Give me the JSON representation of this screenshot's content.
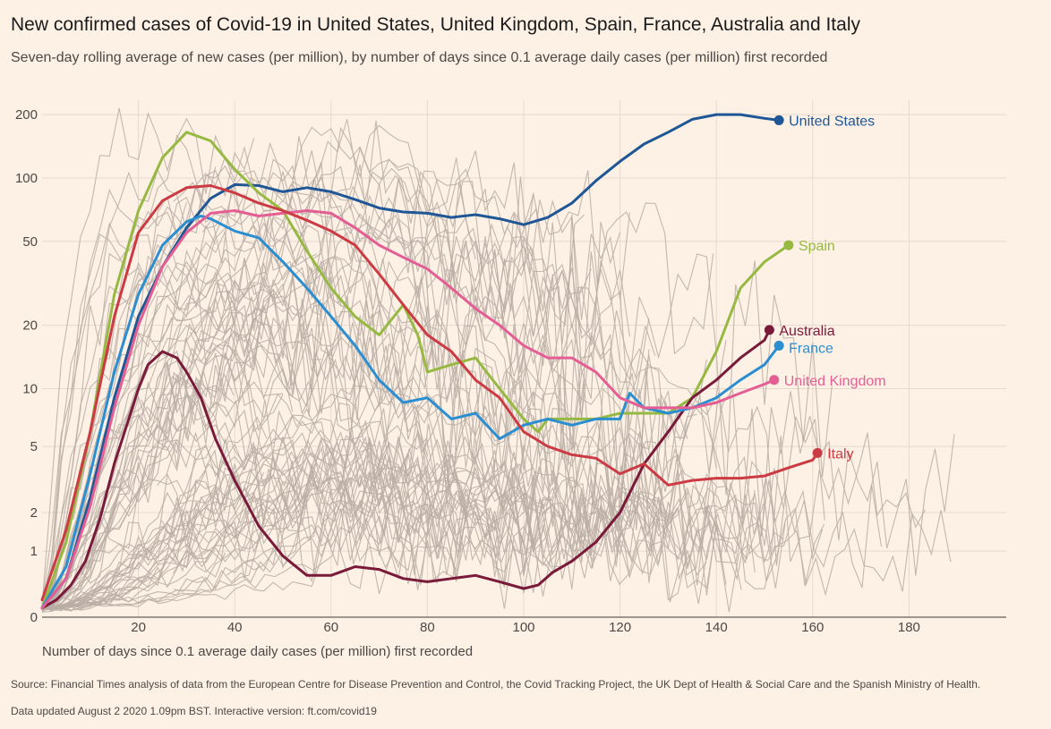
{
  "title": "New confirmed cases of Covid-19 in United States, United Kingdom, Spain, France, Australia and Italy",
  "subtitle": "Seven-day rolling average of new cases (per million), by number of days since 0.1 average daily cases (per million) first recorded",
  "footer": {
    "source": "Source: Financial Times analysis of data from the European Centre for Disease Prevention and Control, the Covid Tracking Project, the UK Dept of Health & Social Care and the Spanish Ministry of Health.",
    "updated": "Data updated August 2 2020 1.09pm BST. Interactive version: ft.com/covid19"
  },
  "colors": {
    "background": "#FDF1E5",
    "grid": "#E6D9CE",
    "axis": "#66605C",
    "other_countries": "#B8ADA4"
  },
  "chart_data": {
    "type": "line",
    "title": "New confirmed cases of Covid-19 in United States, United Kingdom, Spain, France, Australia and Italy",
    "xlabel": "Number of days since 0.1 average daily cases (per million) first recorded",
    "ylabel": "",
    "xlim": [
      0,
      200
    ],
    "ylim": [
      0,
      200
    ],
    "y_scale": "symlog",
    "x_ticks": [
      20,
      40,
      60,
      80,
      100,
      120,
      140,
      160,
      180
    ],
    "y_ticks": [
      0,
      1,
      2,
      5,
      10,
      20,
      50,
      100,
      200
    ],
    "y_tick_labels": [
      "0",
      "1",
      "2",
      "5",
      "10",
      "20",
      "50",
      "100",
      "200"
    ],
    "grid": true,
    "legend": "direct labels at line ends",
    "background_lines": "many other countries shown as thin grey lines",
    "series": [
      {
        "name": "United States",
        "color": "#1F5796",
        "x": [
          0,
          5,
          10,
          15,
          20,
          25,
          30,
          35,
          40,
          45,
          50,
          55,
          60,
          65,
          70,
          75,
          80,
          85,
          90,
          95,
          100,
          105,
          110,
          115,
          120,
          125,
          130,
          135,
          140,
          145,
          150,
          153
        ],
        "y": [
          0.1,
          0.5,
          2.5,
          9,
          22,
          38,
          58,
          80,
          93,
          92,
          86,
          90,
          86,
          79,
          72,
          69,
          68,
          65,
          67,
          64,
          60,
          65,
          76,
          97,
          120,
          145,
          165,
          190,
          200,
          200,
          192,
          188
        ]
      },
      {
        "name": "Spain",
        "color": "#96B941",
        "x": [
          0,
          5,
          10,
          15,
          20,
          25,
          30,
          35,
          40,
          45,
          50,
          55,
          60,
          65,
          70,
          75,
          78,
          80,
          85,
          90,
          95,
          100,
          103,
          105,
          110,
          115,
          120,
          125,
          130,
          135,
          140,
          145,
          150,
          155
        ],
        "y": [
          0.1,
          1.2,
          6,
          28,
          70,
          125,
          165,
          150,
          110,
          85,
          70,
          45,
          30,
          22,
          18,
          25,
          18,
          12,
          13,
          14,
          10,
          7,
          6,
          7,
          7,
          7,
          7.5,
          7.5,
          7.5,
          9,
          15,
          30,
          40,
          48
        ]
      },
      {
        "name": "Australia",
        "color": "#7A1A3A",
        "x": [
          0,
          3,
          6,
          9,
          12,
          15,
          18,
          20,
          22,
          25,
          28,
          30,
          33,
          36,
          40,
          45,
          50,
          55,
          60,
          65,
          70,
          75,
          80,
          85,
          90,
          95,
          100,
          103,
          106,
          110,
          115,
          120,
          125,
          130,
          135,
          140,
          145,
          150,
          151
        ],
        "y": [
          0.1,
          0.2,
          0.4,
          0.8,
          1.8,
          4,
          7,
          10,
          13,
          15,
          14,
          12,
          9,
          5.5,
          3.2,
          1.6,
          0.9,
          0.55,
          0.55,
          0.7,
          0.65,
          0.5,
          0.45,
          0.5,
          0.55,
          0.45,
          0.35,
          0.4,
          0.6,
          0.8,
          1.2,
          2,
          4,
          6,
          9,
          11,
          14,
          17,
          19
        ]
      },
      {
        "name": "France",
        "color": "#2A8ED1",
        "x": [
          0,
          5,
          10,
          15,
          20,
          25,
          30,
          33,
          35,
          40,
          45,
          50,
          55,
          60,
          65,
          70,
          75,
          80,
          85,
          90,
          95,
          100,
          105,
          110,
          115,
          120,
          122,
          125,
          130,
          135,
          140,
          145,
          150,
          153
        ],
        "y": [
          0.1,
          0.7,
          3.5,
          12,
          28,
          48,
          62,
          66,
          64,
          56,
          52,
          40,
          30,
          22,
          16,
          11,
          8.5,
          9,
          7,
          7.5,
          5.5,
          6.5,
          7,
          6.5,
          7,
          7,
          9.5,
          8,
          7.5,
          8,
          9,
          11,
          13,
          16
        ]
      },
      {
        "name": "United Kingdom",
        "color": "#E45E94",
        "x": [
          0,
          5,
          10,
          15,
          20,
          25,
          30,
          35,
          40,
          45,
          50,
          55,
          60,
          65,
          70,
          75,
          80,
          85,
          90,
          95,
          100,
          105,
          110,
          115,
          120,
          125,
          130,
          135,
          140,
          145,
          150,
          152
        ],
        "y": [
          0.1,
          0.5,
          2.2,
          8,
          20,
          38,
          55,
          68,
          70,
          66,
          68,
          70,
          68,
          58,
          48,
          42,
          37,
          30,
          24,
          20,
          16,
          14,
          14,
          12,
          9,
          8,
          8,
          8,
          8.5,
          9.5,
          10.5,
          11
        ]
      },
      {
        "name": "Italy",
        "color": "#CC3B44",
        "x": [
          0,
          5,
          10,
          15,
          20,
          25,
          30,
          35,
          40,
          45,
          50,
          55,
          60,
          65,
          70,
          75,
          80,
          85,
          90,
          95,
          100,
          105,
          110,
          115,
          120,
          125,
          130,
          135,
          140,
          145,
          150,
          155,
          160,
          161
        ],
        "y": [
          0.2,
          1.5,
          6,
          22,
          55,
          78,
          90,
          92,
          85,
          76,
          70,
          63,
          56,
          48,
          35,
          25,
          18,
          15,
          11,
          9,
          6,
          5,
          4.5,
          4.3,
          3.5,
          4,
          3,
          3.2,
          3.3,
          3.3,
          3.4,
          3.8,
          4.2,
          4.6
        ]
      }
    ]
  }
}
